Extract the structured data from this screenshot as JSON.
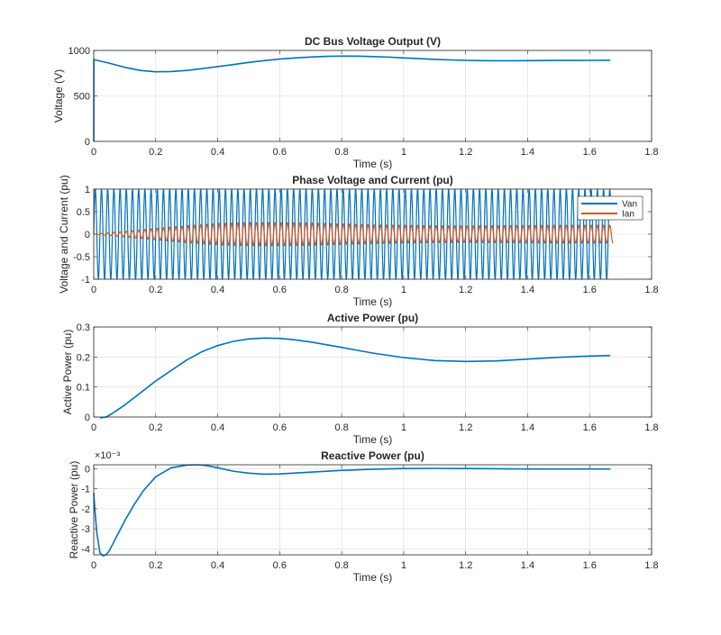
{
  "colors": {
    "series1": "#0072BD",
    "series2": "#D95319",
    "grid": "#d9d9d9",
    "axis": "#262626"
  },
  "chart_data": [
    {
      "type": "line",
      "title": "DC Bus Voltage Output (V)",
      "xlabel": "Time (s)",
      "ylabel": "Voltage (V)",
      "xlim": [
        0,
        1.8
      ],
      "ylim": [
        0,
        1000
      ],
      "xticks": [
        "0",
        "0.2",
        "0.4",
        "0.6",
        "0.8",
        "1",
        "1.2",
        "1.4",
        "1.6",
        "1.8"
      ],
      "yticks": [
        "0",
        "500",
        "1000"
      ],
      "ytick_values": [
        0,
        500,
        1000
      ],
      "exponent_label": "",
      "grid": true,
      "series": [
        {
          "name": "",
          "color": "#0072BD",
          "x": [
            0,
            0.0005,
            0.05,
            0.1,
            0.15,
            0.2,
            0.25,
            0.3,
            0.35,
            0.4,
            0.45,
            0.5,
            0.55,
            0.6,
            0.65,
            0.7,
            0.75,
            0.8,
            0.85,
            0.9,
            0.95,
            1.0,
            1.05,
            1.1,
            1.15,
            1.2,
            1.25,
            1.3,
            1.35,
            1.4,
            1.45,
            1.5,
            1.55,
            1.6,
            1.667
          ],
          "y": [
            0,
            900,
            860,
            815,
            780,
            765,
            768,
            780,
            800,
            822,
            845,
            868,
            888,
            905,
            918,
            928,
            935,
            938,
            937,
            933,
            927,
            918,
            910,
            902,
            896,
            891,
            888,
            887,
            887,
            888,
            889,
            890,
            890,
            891,
            892
          ]
        }
      ]
    },
    {
      "type": "line",
      "title": "Phase Voltage and Current (pu)",
      "xlabel": "Time (s)",
      "ylabel": "Voltage and Current (pu)",
      "xlim": [
        0,
        1.8
      ],
      "ylim": [
        -1,
        1
      ],
      "xticks": [
        "0",
        "0.2",
        "0.4",
        "0.6",
        "0.8",
        "1",
        "1.2",
        "1.4",
        "1.6",
        "1.8"
      ],
      "yticks": [
        "-1",
        "-0.5",
        "0",
        "0.5",
        "1"
      ],
      "ytick_values": [
        -1,
        -0.5,
        0,
        0.5,
        1
      ],
      "exponent_label": "",
      "grid": true,
      "legend": {
        "placement": "top-right",
        "entries": [
          "Van",
          "Ian"
        ]
      },
      "series": [
        {
          "name": "Van",
          "color": "#0072BD",
          "kind": "sinusoid",
          "frequency_hz": 50,
          "t_end": 1.667,
          "envelope_t": [
            0,
            1.667
          ],
          "envelope_a": [
            1,
            1
          ]
        },
        {
          "name": "Ian",
          "color": "#D95319",
          "kind": "sinusoid",
          "frequency_hz": 50,
          "t_end": 1.675,
          "envelope_t": [
            0,
            0.1,
            0.2,
            0.3,
            0.4,
            0.5,
            0.6,
            0.7,
            0.8,
            0.9,
            1.0,
            1.1,
            1.2,
            1.3,
            1.4,
            1.5,
            1.6,
            1.675
          ],
          "envelope_a": [
            0,
            0.06,
            0.13,
            0.19,
            0.24,
            0.26,
            0.26,
            0.25,
            0.23,
            0.21,
            0.2,
            0.19,
            0.185,
            0.19,
            0.195,
            0.2,
            0.2,
            0.2
          ]
        }
      ]
    },
    {
      "type": "line",
      "title": "Active Power (pu)",
      "xlabel": "Time (s)",
      "ylabel": "Active Power (pu)",
      "xlim": [
        0,
        1.8
      ],
      "ylim": [
        0,
        0.3
      ],
      "xticks": [
        "0",
        "0.2",
        "0.4",
        "0.6",
        "0.8",
        "1",
        "1.2",
        "1.4",
        "1.6",
        "1.8"
      ],
      "yticks": [
        "0",
        "0.1",
        "0.2",
        "0.3"
      ],
      "ytick_values": [
        0,
        0.1,
        0.2,
        0.3
      ],
      "exponent_label": "",
      "grid": true,
      "series": [
        {
          "name": "",
          "color": "#0072BD",
          "x": [
            0.02,
            0.04,
            0.06,
            0.1,
            0.15,
            0.2,
            0.25,
            0.3,
            0.35,
            0.4,
            0.45,
            0.5,
            0.55,
            0.6,
            0.65,
            0.7,
            0.8,
            0.9,
            1.0,
            1.1,
            1.2,
            1.3,
            1.4,
            1.5,
            1.6,
            1.667
          ],
          "y": [
            -0.003,
            0.0,
            0.012,
            0.04,
            0.08,
            0.12,
            0.155,
            0.19,
            0.218,
            0.238,
            0.252,
            0.26,
            0.263,
            0.262,
            0.257,
            0.25,
            0.232,
            0.213,
            0.198,
            0.188,
            0.185,
            0.187,
            0.193,
            0.199,
            0.203,
            0.205
          ]
        }
      ]
    },
    {
      "type": "line",
      "title": "Reactive Power (pu)",
      "xlabel": "Time (s)",
      "ylabel": "Reactive Power (pu)",
      "xlim": [
        0,
        1.8
      ],
      "ylim": [
        -4.3,
        0.2
      ],
      "xticks": [
        "0",
        "0.2",
        "0.4",
        "0.6",
        "0.8",
        "1",
        "1.2",
        "1.4",
        "1.6",
        "1.8"
      ],
      "yticks": [
        "0",
        "-1",
        "-2",
        "-3",
        "-4"
      ],
      "ytick_values": [
        0,
        -1,
        -2,
        -3,
        -4
      ],
      "exponent_label": "×10⁻³",
      "grid": true,
      "series": [
        {
          "name": "",
          "color": "#0072BD",
          "x": [
            0,
            0.005,
            0.01,
            0.02,
            0.03,
            0.04,
            0.05,
            0.07,
            0.1,
            0.13,
            0.16,
            0.2,
            0.25,
            0.3,
            0.33,
            0.36,
            0.4,
            0.45,
            0.5,
            0.55,
            0.6,
            0.7,
            0.8,
            0.9,
            1.0,
            1.1,
            1.2,
            1.3,
            1.4,
            1.5,
            1.6,
            1.667
          ],
          "y": [
            -1.2,
            -2.3,
            -3.2,
            -4.2,
            -4.35,
            -4.3,
            -4.1,
            -3.5,
            -2.6,
            -1.8,
            -1.1,
            -0.4,
            0.05,
            0.18,
            0.2,
            0.17,
            0.05,
            -0.12,
            -0.22,
            -0.27,
            -0.26,
            -0.17,
            -0.08,
            -0.02,
            0.01,
            0.02,
            0.01,
            0.0,
            -0.01,
            -0.01,
            -0.01,
            -0.01
          ]
        }
      ]
    }
  ]
}
